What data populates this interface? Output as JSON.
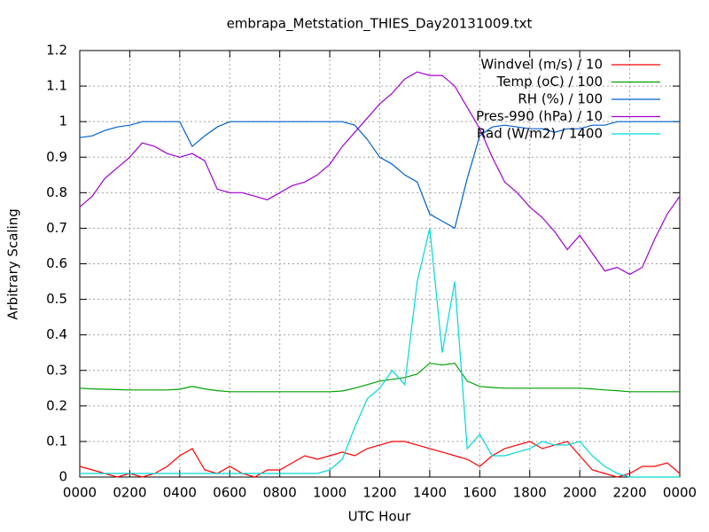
{
  "chart_data": {
    "type": "line",
    "title": "embrapa_Metstation_THIES_Day20131009.txt",
    "x_label": "UTC Hour",
    "y_label": "Arbitrary Scaling",
    "xlim": [
      0,
      24
    ],
    "xticks": [
      {
        "value": 0,
        "label": "0000"
      },
      {
        "value": 2,
        "label": "0200"
      },
      {
        "value": 4,
        "label": "0400"
      },
      {
        "value": 6,
        "label": "0600"
      },
      {
        "value": 8,
        "label": "0800"
      },
      {
        "value": 10,
        "label": "1000"
      },
      {
        "value": 12,
        "label": "1200"
      },
      {
        "value": 14,
        "label": "1400"
      },
      {
        "value": 16,
        "label": "1600"
      },
      {
        "value": 18,
        "label": "1800"
      },
      {
        "value": 20,
        "label": "2000"
      },
      {
        "value": 22,
        "label": "2200"
      },
      {
        "value": 24,
        "label": "0000"
      }
    ],
    "ylim": [
      0,
      1.2
    ],
    "yticks": [
      0,
      0.1,
      0.2,
      0.3,
      0.4,
      0.5,
      0.6,
      0.7,
      0.8,
      0.9,
      1,
      1.1,
      1.2
    ],
    "grid": true,
    "legend": "top-right",
    "x": [
      0,
      0.5,
      1,
      1.5,
      2,
      2.5,
      3,
      3.5,
      4,
      4.5,
      5,
      5.5,
      6,
      6.5,
      7,
      7.5,
      8,
      8.5,
      9,
      9.5,
      10,
      10.5,
      11,
      11.5,
      12,
      12.5,
      13,
      13.5,
      14,
      14.5,
      15,
      15.5,
      16,
      16.5,
      17,
      17.5,
      18,
      18.5,
      19,
      19.5,
      20,
      20.5,
      21,
      21.5,
      22,
      22.5,
      23,
      23.5,
      24
    ],
    "series": [
      {
        "name": "Windvel (m/s) / 10",
        "color": "#ff0000",
        "values": [
          0.03,
          0.02,
          0.01,
          0.0,
          0.01,
          0.0,
          0.01,
          0.03,
          0.06,
          0.08,
          0.02,
          0.01,
          0.03,
          0.01,
          0.0,
          0.02,
          0.02,
          0.04,
          0.06,
          0.05,
          0.06,
          0.07,
          0.06,
          0.08,
          0.09,
          0.1,
          0.1,
          0.09,
          0.08,
          0.07,
          0.06,
          0.05,
          0.03,
          0.06,
          0.08,
          0.09,
          0.1,
          0.08,
          0.09,
          0.1,
          0.06,
          0.02,
          0.01,
          0.0,
          0.01,
          0.03,
          0.03,
          0.04,
          0.01
        ]
      },
      {
        "name": "Temp (oC) / 100",
        "color": "#00a000",
        "values": [
          0.25,
          0.248,
          0.247,
          0.246,
          0.245,
          0.245,
          0.245,
          0.245,
          0.247,
          0.255,
          0.248,
          0.243,
          0.24,
          0.24,
          0.24,
          0.24,
          0.24,
          0.24,
          0.24,
          0.24,
          0.24,
          0.242,
          0.25,
          0.26,
          0.27,
          0.275,
          0.28,
          0.29,
          0.32,
          0.315,
          0.32,
          0.27,
          0.255,
          0.252,
          0.25,
          0.25,
          0.25,
          0.25,
          0.25,
          0.25,
          0.25,
          0.248,
          0.245,
          0.243,
          0.24,
          0.24,
          0.24,
          0.24,
          0.24
        ]
      },
      {
        "name": "RH (%) / 100",
        "color": "#0060d0",
        "values": [
          0.955,
          0.96,
          0.975,
          0.985,
          0.99,
          1,
          1,
          1,
          1,
          0.93,
          0.96,
          0.985,
          1,
          1,
          1,
          1,
          1,
          1,
          1,
          1,
          1,
          1,
          0.99,
          0.95,
          0.9,
          0.88,
          0.85,
          0.83,
          0.74,
          0.72,
          0.7,
          0.84,
          0.96,
          0.985,
          0.99,
          0.985,
          0.98,
          0.98,
          0.97,
          0.98,
          0.98,
          0.99,
          0.99,
          1,
          1,
          1,
          1,
          1,
          1
        ]
      },
      {
        "name": "Pres-990 (hPa) / 10",
        "color": "#a000d0",
        "values": [
          0.76,
          0.79,
          0.84,
          0.87,
          0.9,
          0.94,
          0.93,
          0.91,
          0.9,
          0.91,
          0.89,
          0.81,
          0.8,
          0.8,
          0.79,
          0.78,
          0.8,
          0.82,
          0.83,
          0.85,
          0.88,
          0.93,
          0.97,
          1.01,
          1.05,
          1.08,
          1.12,
          1.14,
          1.13,
          1.13,
          1.1,
          1.04,
          0.98,
          0.9,
          0.83,
          0.8,
          0.76,
          0.73,
          0.69,
          0.64,
          0.68,
          0.63,
          0.58,
          0.59,
          0.57,
          0.59,
          0.67,
          0.74,
          0.79
        ]
      },
      {
        "name": "Rad (W/m2) / 1400",
        "color": "#00d8d8",
        "values": [
          0.01,
          0.01,
          0.01,
          0.01,
          0.01,
          0.01,
          0.01,
          0.01,
          0.01,
          0.01,
          0.01,
          0.01,
          0.01,
          0.01,
          0.01,
          0.01,
          0.01,
          0.01,
          0.01,
          0.01,
          0.02,
          0.05,
          0.14,
          0.22,
          0.25,
          0.3,
          0.26,
          0.55,
          0.7,
          0.35,
          0.55,
          0.08,
          0.12,
          0.06,
          0.06,
          0.07,
          0.08,
          0.1,
          0.09,
          0.09,
          0.1,
          0.06,
          0.03,
          0.01,
          0.0,
          0.0,
          0.0,
          0.0,
          0.0
        ]
      }
    ]
  }
}
